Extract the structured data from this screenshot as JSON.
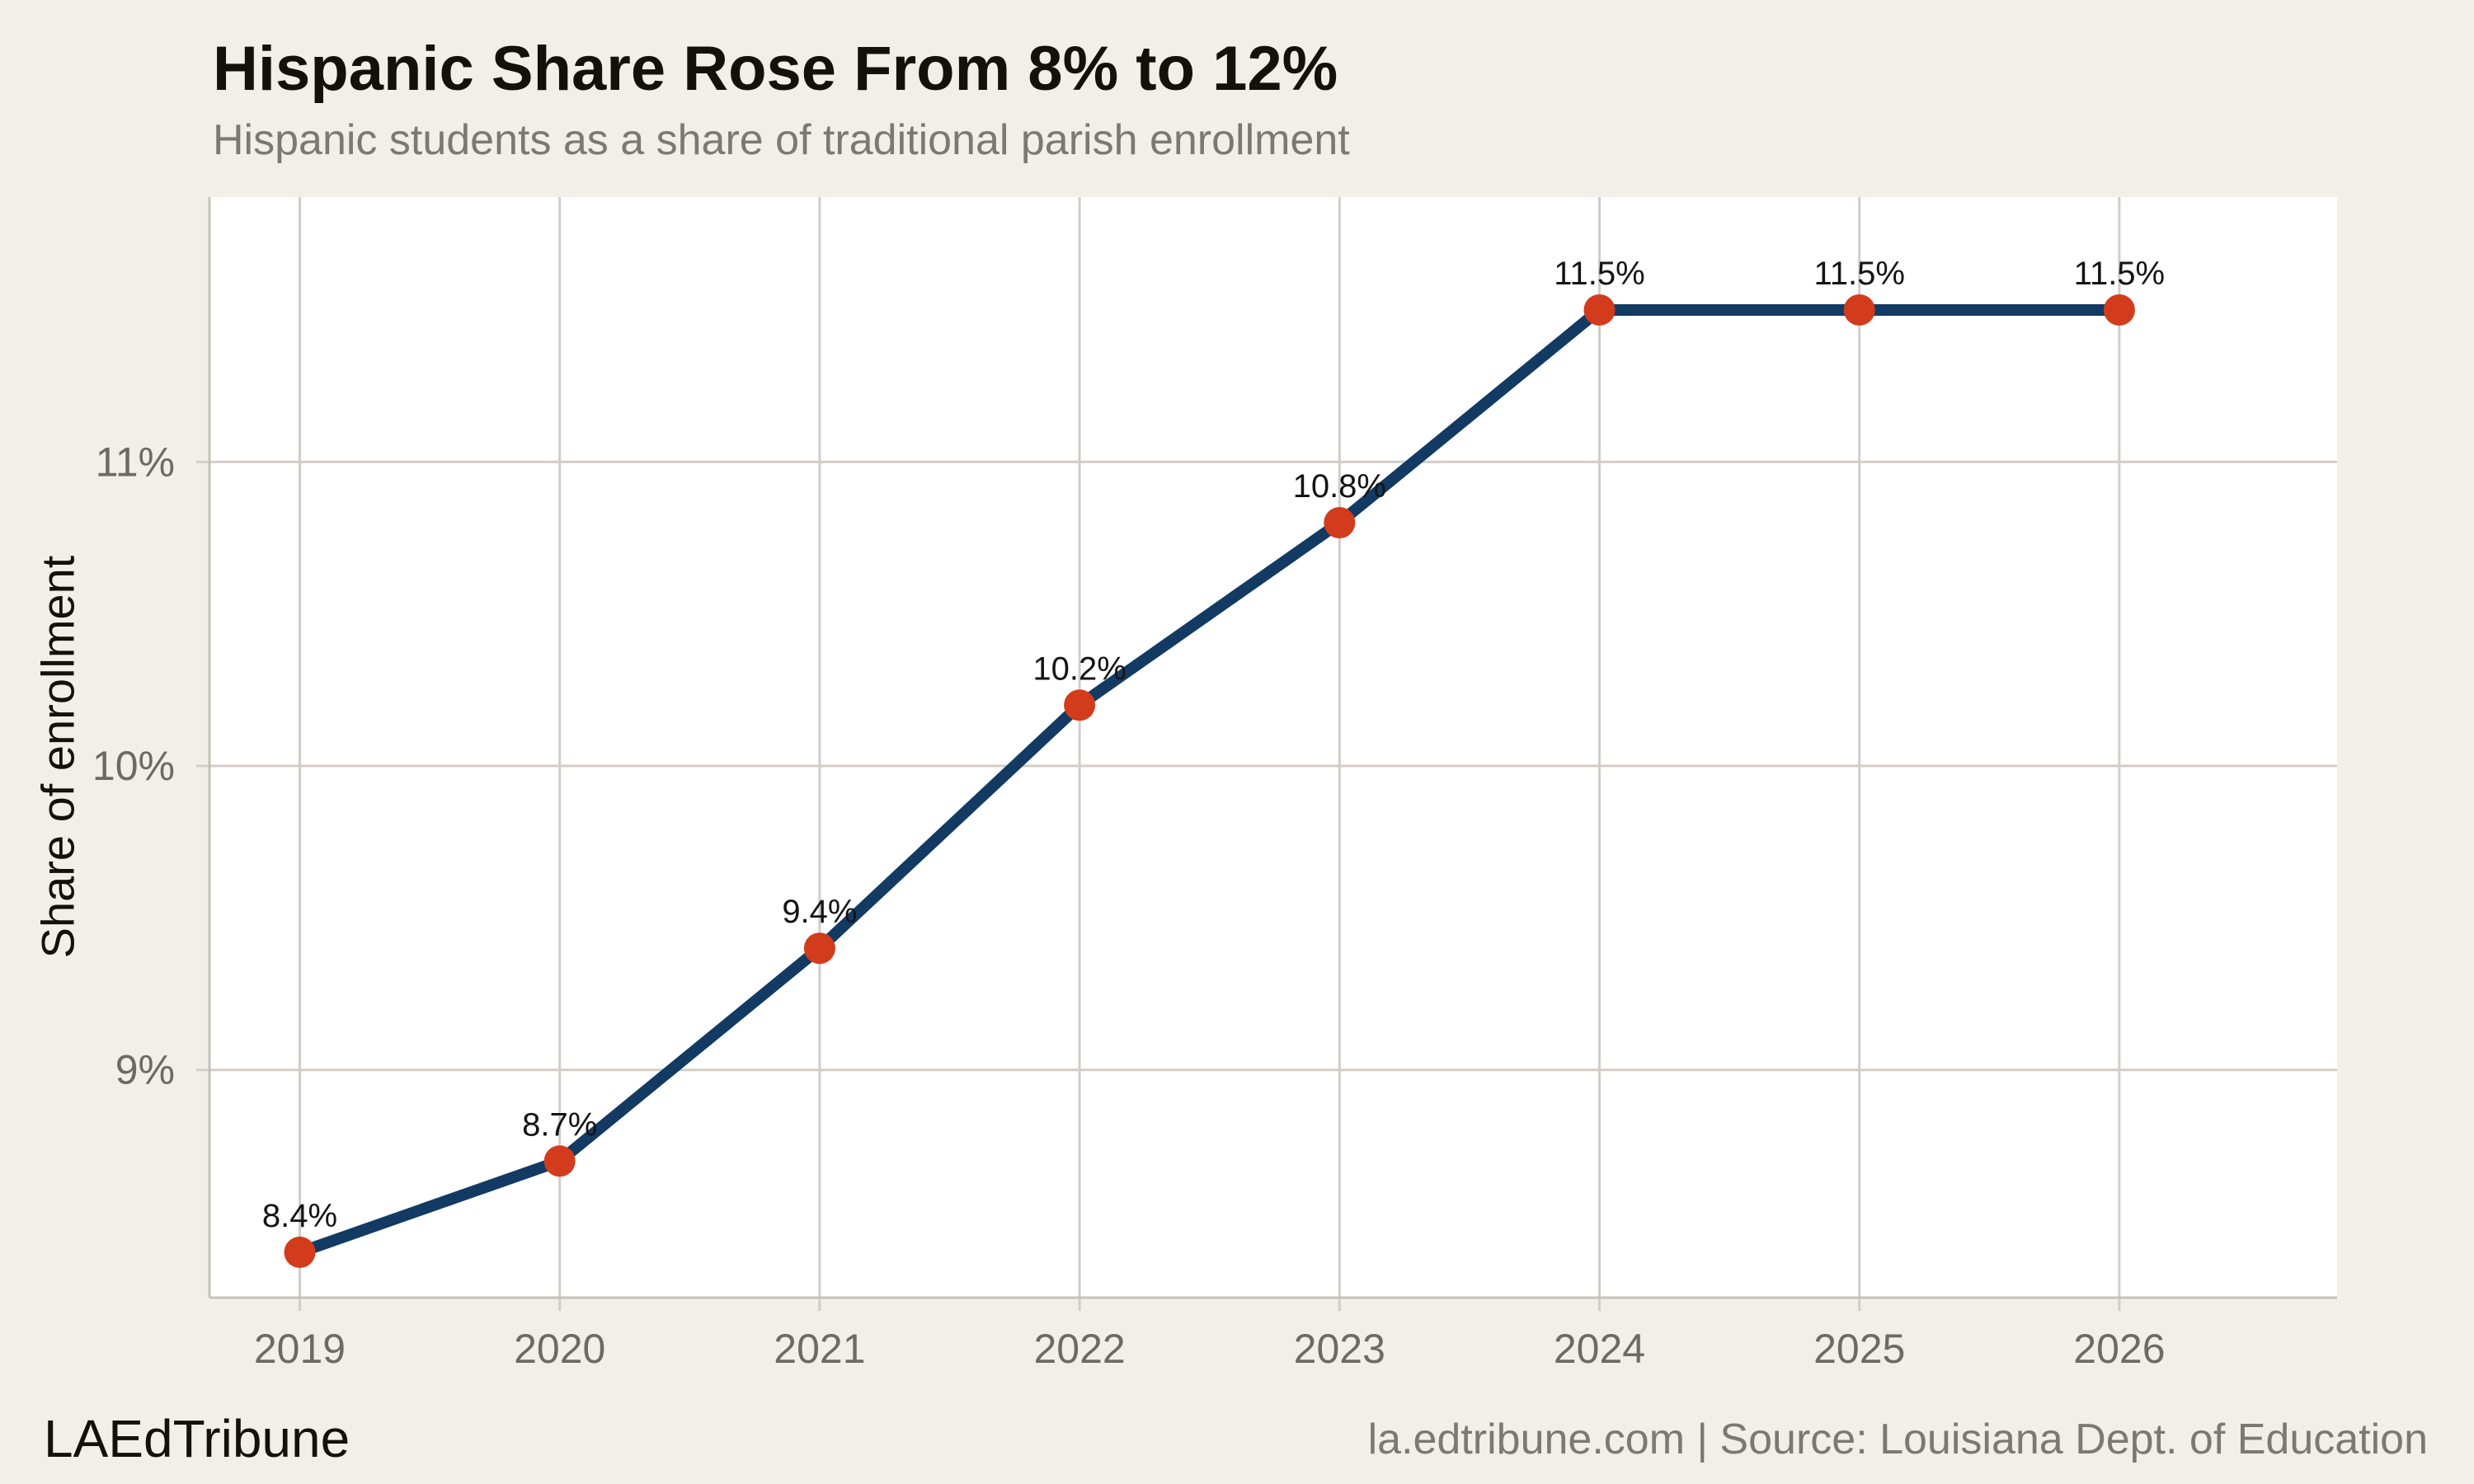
{
  "header": {
    "title": "Hispanic Share Rose From 8% to 12%",
    "subtitle": "Hispanic students as a share of traditional parish enrollment"
  },
  "footer": {
    "brand": "LAEdTribune",
    "source": "la.edtribune.com | Source: Louisiana Dept. of Education"
  },
  "chart_data": {
    "type": "line",
    "title": "Hispanic Share Rose From 8% to 12%",
    "subtitle": "Hispanic students as a share of traditional parish enrollment",
    "categories": [
      "2019",
      "2020",
      "2021",
      "2022",
      "2023",
      "2024",
      "2025",
      "2026"
    ],
    "values": [
      8.4,
      8.7,
      9.4,
      10.2,
      10.8,
      11.5,
      11.5,
      11.5
    ],
    "point_labels": [
      "8.4%",
      "8.7%",
      "9.4%",
      "10.2%",
      "10.8%",
      "11.5%",
      "11.5%",
      "11.5%"
    ],
    "xlabel": "",
    "ylabel": "Share of enrollment",
    "y_ticks": [
      {
        "value": 9,
        "label": "9%"
      },
      {
        "value": 10,
        "label": "10%"
      },
      {
        "value": 11,
        "label": "11%"
      }
    ],
    "ylim": [
      8.25,
      11.87
    ],
    "grid": true,
    "legend": false,
    "colors": {
      "page_bg": "#f2efe9",
      "plot_bg": "#ffffff",
      "grid": "#d2cdc5",
      "spine": "#c7c1b8",
      "line": "#123a63",
      "marker": "#d23c1c",
      "tick_label": "#6e6a63",
      "data_label": "#141414",
      "title": "#14110d",
      "subtitle": "#7c7872"
    }
  }
}
